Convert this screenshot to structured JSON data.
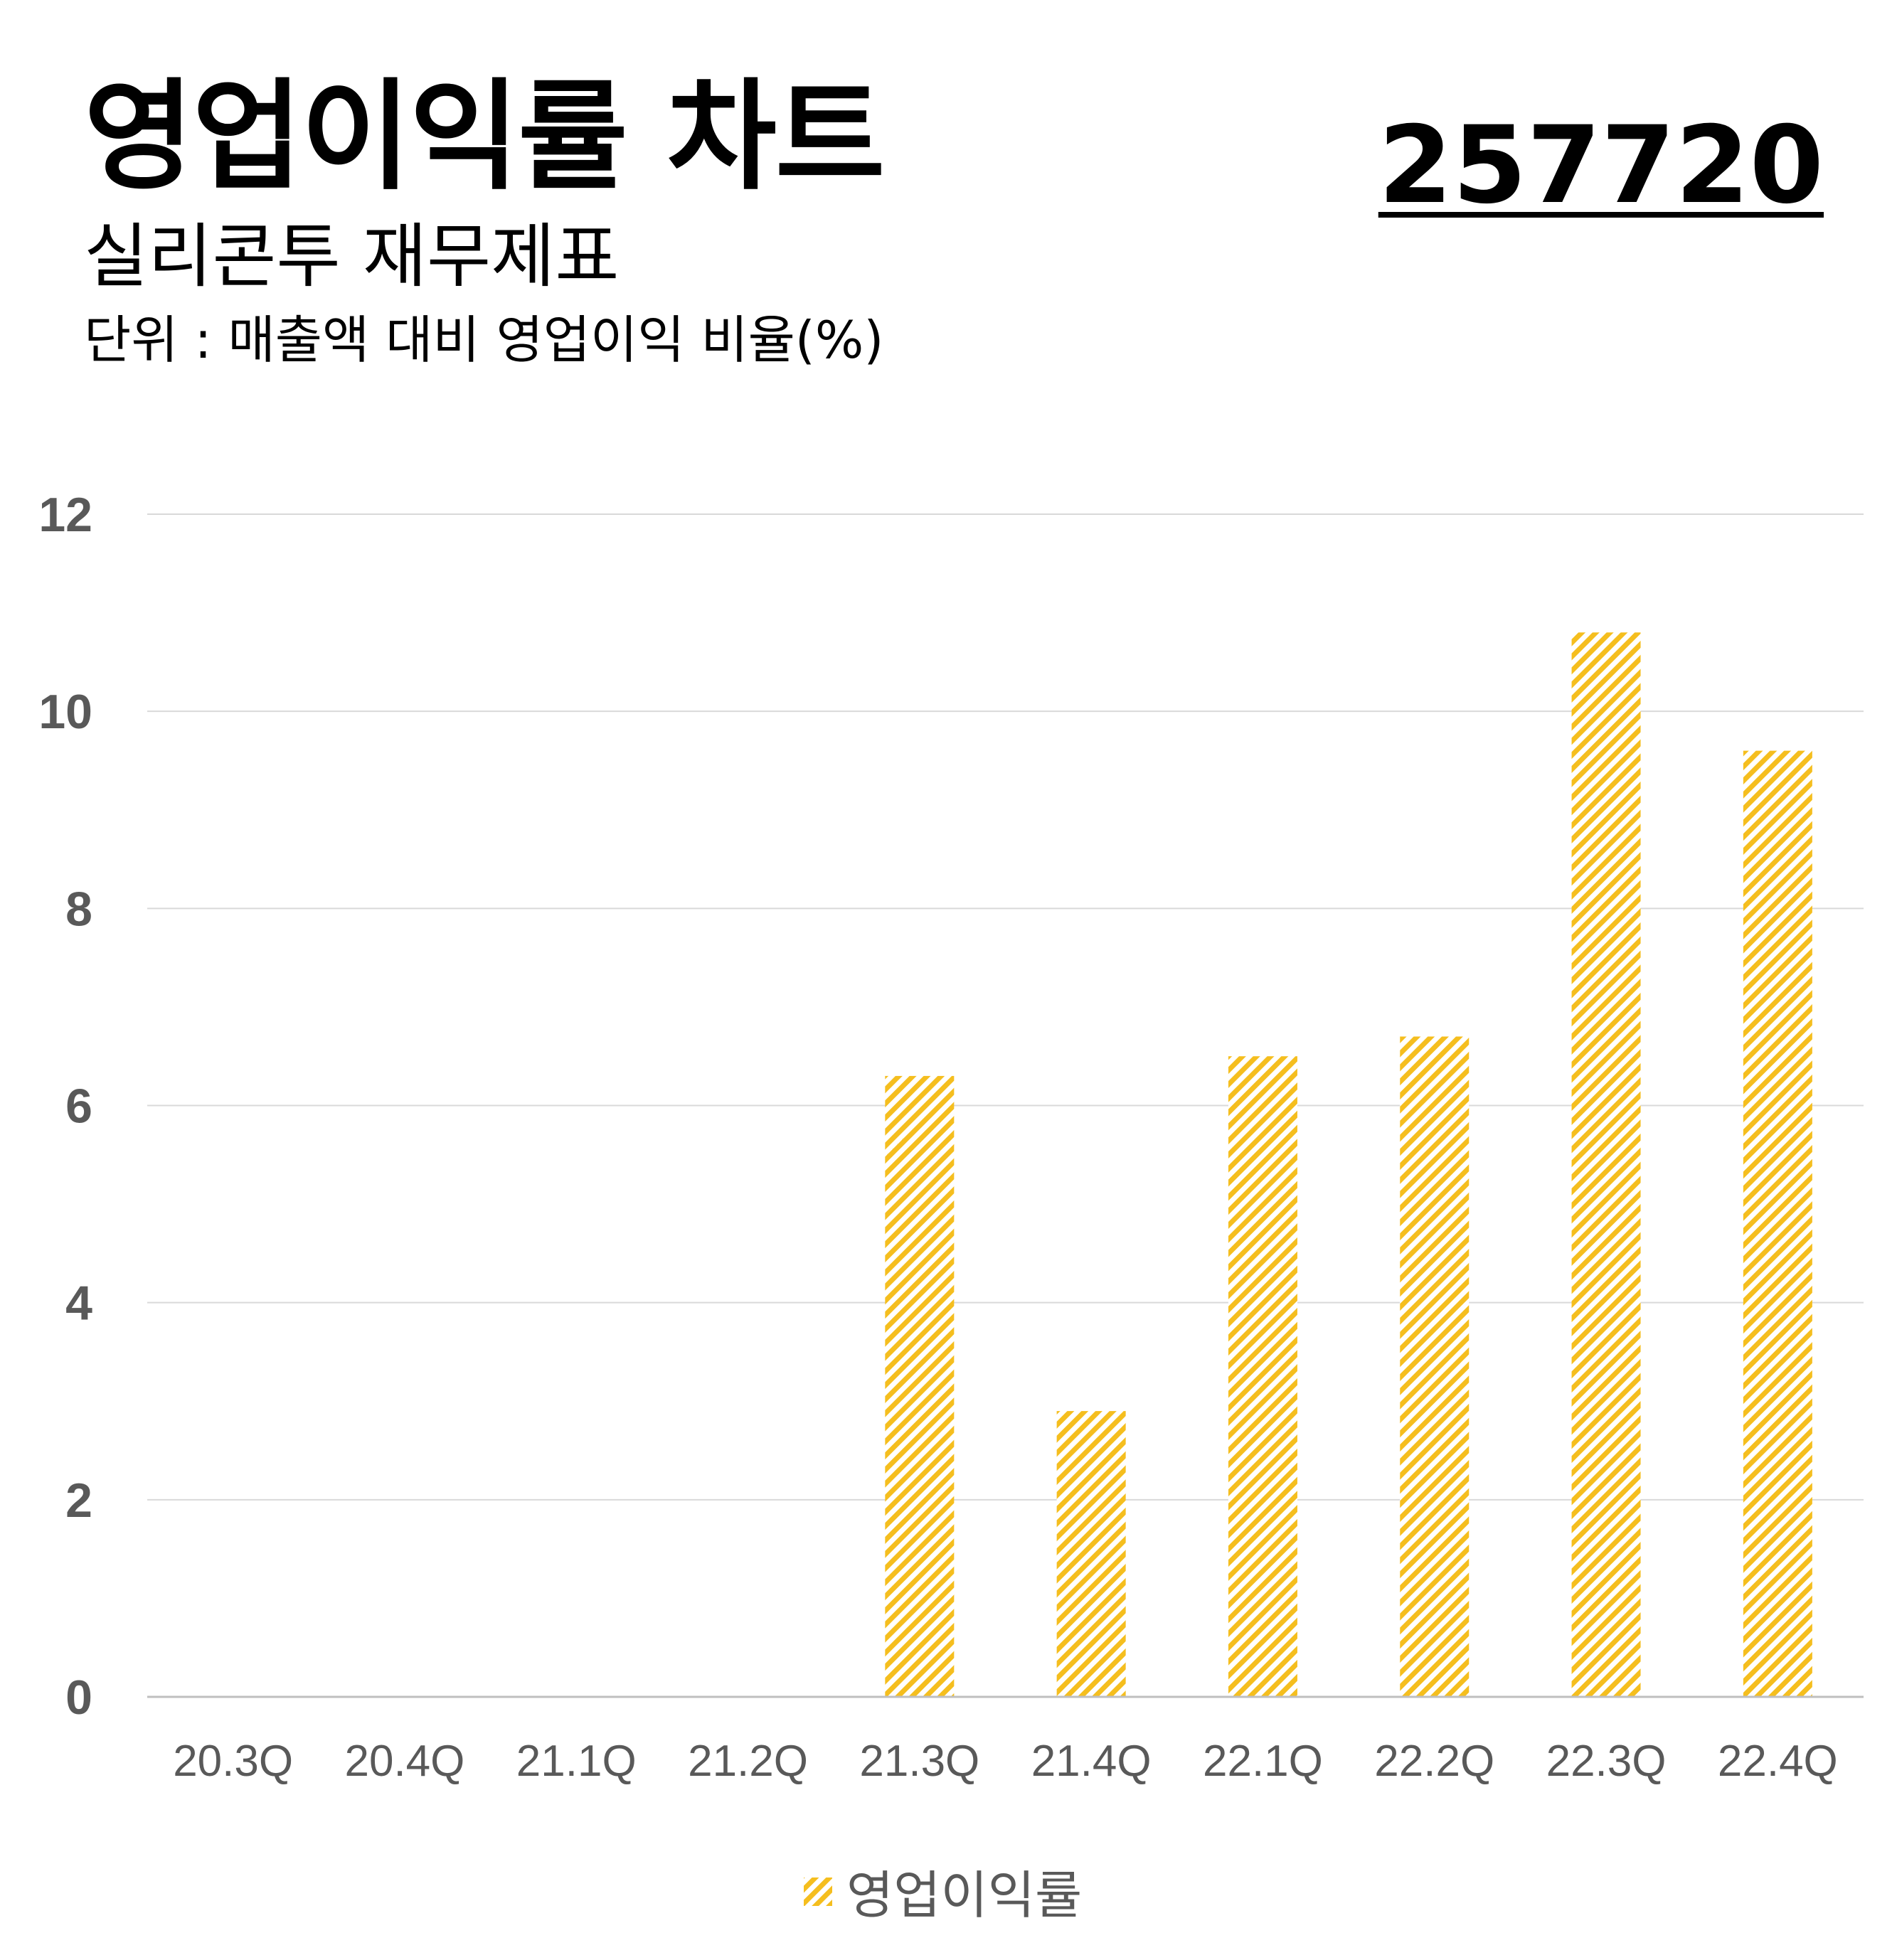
{
  "header": {
    "title": "영업이익률 차트",
    "ticker": "257720",
    "subtitle": "실리콘투 재무제표",
    "unit": "단위 : 매출액 대비 영업이익 비율(%)"
  },
  "colors": {
    "bar": "#F5BE1E",
    "grid": "#D9D9D9",
    "axis": "#BFBFBF",
    "tick_text": "#595959"
  },
  "chart_data": {
    "type": "bar",
    "categories": [
      "20.3Q",
      "20.4Q",
      "21.1Q",
      "21.2Q",
      "21.3Q",
      "21.4Q",
      "22.1Q",
      "22.2Q",
      "22.3Q",
      "22.4Q"
    ],
    "series": [
      {
        "name": "영업이익률",
        "values": [
          null,
          null,
          null,
          null,
          6.3,
          2.9,
          6.5,
          6.7,
          10.8,
          9.6
        ]
      }
    ],
    "ylim": [
      0,
      12
    ],
    "yticks": [
      "0",
      "2",
      "4",
      "6",
      "8",
      "10",
      "12"
    ],
    "fill": "diagonal-hatch",
    "grid": true,
    "legend_position": "bottom"
  }
}
